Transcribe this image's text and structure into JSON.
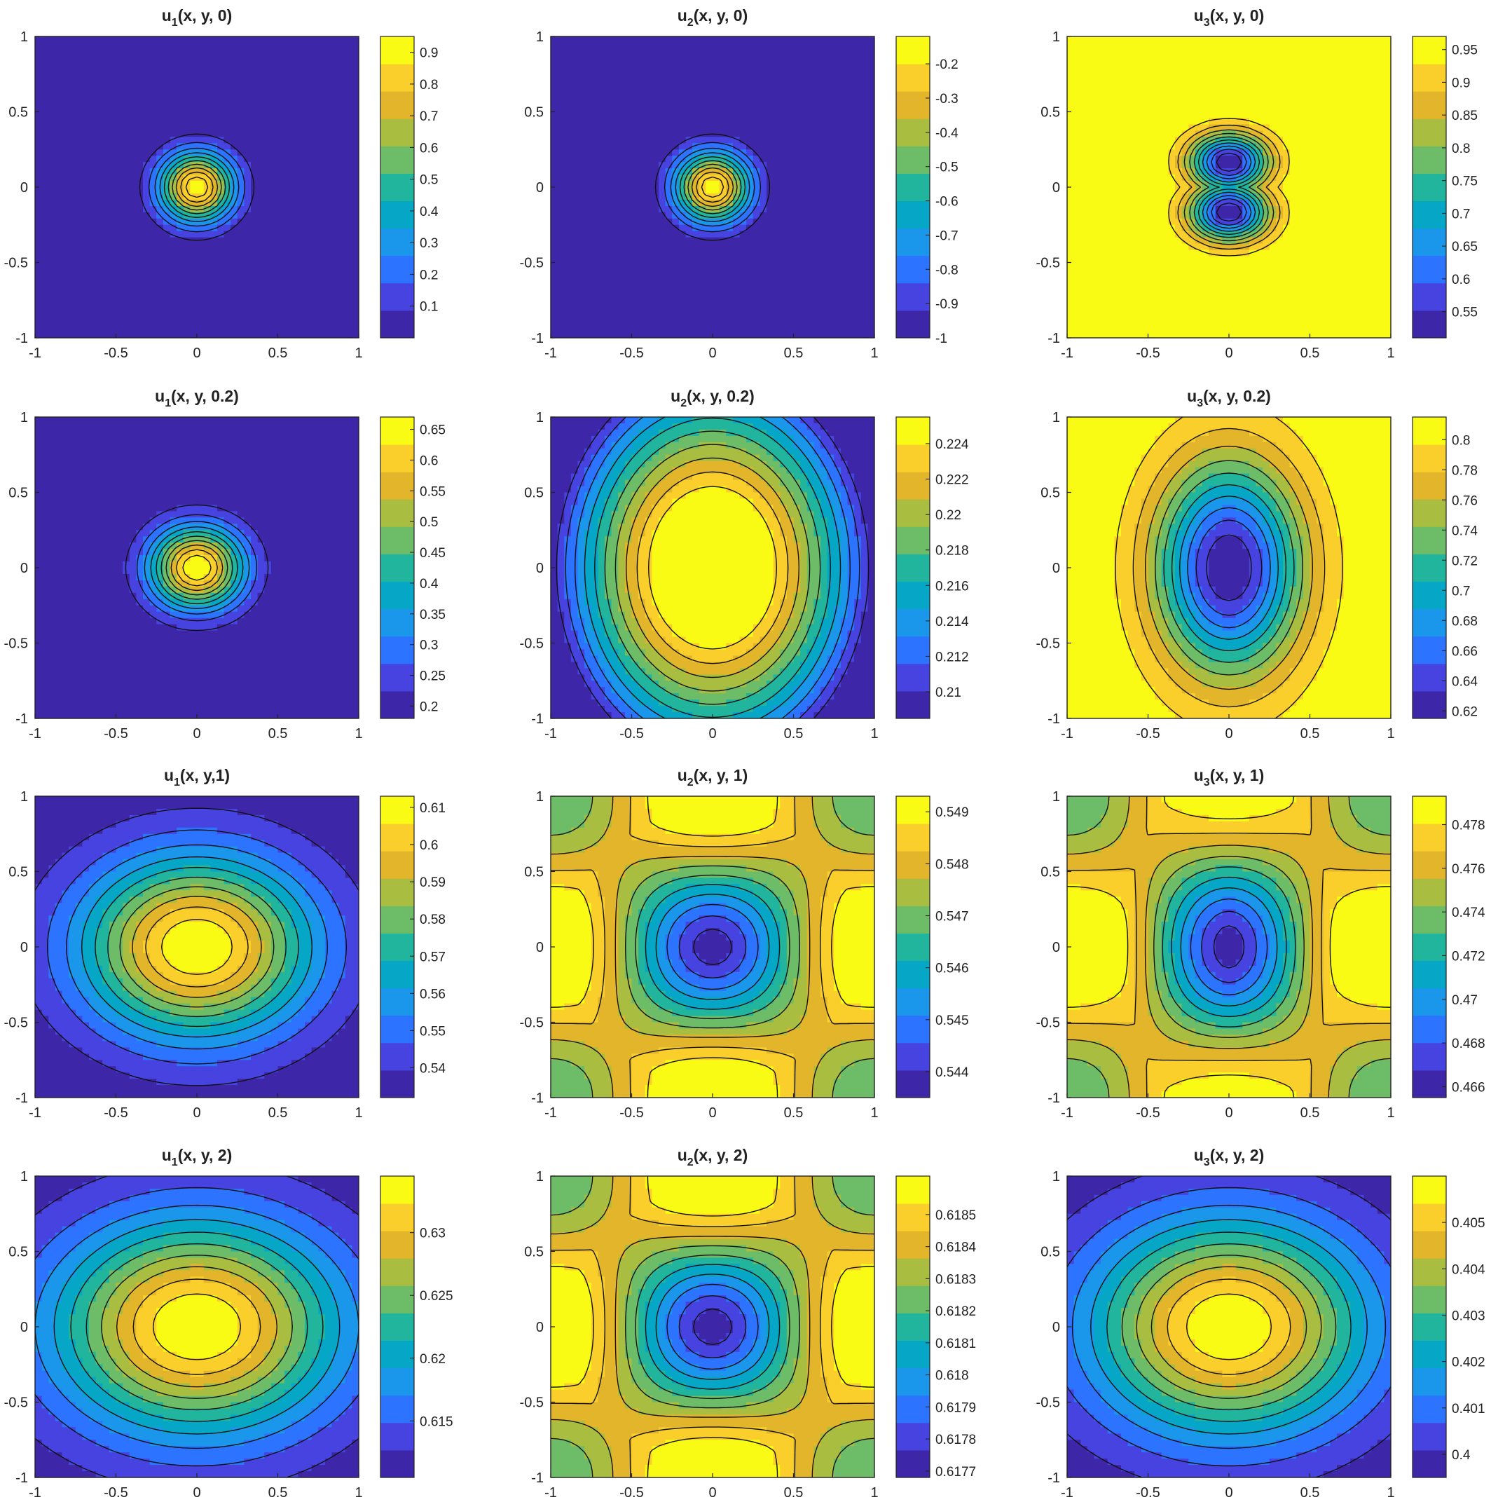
{
  "colormap": [
    "#3e26a8",
    "#4743e0",
    "#2c73ff",
    "#1a96eb",
    "#06a7c6",
    "#20b59c",
    "#6cbc68",
    "#a9be41",
    "#e2b52a",
    "#fbcf2b",
    "#f9fb14"
  ],
  "chart_data": [
    {
      "type": "contour",
      "title": "u",
      "subscript": "1",
      "suffix": "(x, y, 0)",
      "field": "gauss",
      "params": {
        "cx": 0,
        "cy": 0,
        "sx": 0.16,
        "sy": 0.16
      },
      "zlim": [
        0.0,
        0.95
      ],
      "colorbar_ticks": [
        "0.1",
        "0.2",
        "0.3",
        "0.4",
        "0.5",
        "0.6",
        "0.7",
        "0.8",
        "0.9"
      ],
      "colorbar_values": [
        0.1,
        0.2,
        0.3,
        0.4,
        0.5,
        0.6,
        0.7,
        0.8,
        0.9
      ],
      "x_ticks": [
        "-1",
        "-0.5",
        "0",
        "0.5",
        "1"
      ],
      "y_ticks": [
        "1",
        "0.5",
        "0",
        "-0.5",
        "-1"
      ],
      "xlim": [
        -1,
        1
      ],
      "ylim": [
        -1,
        1
      ]
    },
    {
      "type": "contour",
      "title": "u",
      "subscript": "2",
      "suffix": "(x, y, 0)",
      "field": "gauss",
      "params": {
        "cx": 0,
        "cy": 0,
        "sx": 0.16,
        "sy": 0.16
      },
      "zlim": [
        -1.0,
        -0.12
      ],
      "colorbar_ticks": [
        "-0.2",
        "-0.3",
        "-0.4",
        "-0.5",
        "-0.6",
        "-0.7",
        "-0.8",
        "-0.9",
        "-1"
      ],
      "colorbar_values": [
        -0.2,
        -0.3,
        -0.4,
        -0.5,
        -0.6,
        -0.7,
        -0.8,
        -0.9,
        -1.0
      ],
      "x_ticks": [
        "-1",
        "-0.5",
        "0",
        "0.5",
        "1"
      ],
      "y_ticks": [
        "1",
        "0.5",
        "0",
        "-0.5",
        "-1"
      ],
      "xlim": [
        -1,
        1
      ],
      "ylim": [
        -1,
        1
      ]
    },
    {
      "type": "contour",
      "title": "u",
      "subscript": "3",
      "suffix": "(x, y, 0)",
      "field": "peanut",
      "params": {
        "sx": 0.17,
        "sy": 0.3
      },
      "zlim": [
        0.51,
        0.97
      ],
      "colorbar_ticks": [
        "0.95",
        "0.9",
        "0.85",
        "0.8",
        "0.75",
        "0.7",
        "0.65",
        "0.6",
        "0.55"
      ],
      "colorbar_values": [
        0.95,
        0.9,
        0.85,
        0.8,
        0.75,
        0.7,
        0.65,
        0.6,
        0.55
      ],
      "x_ticks": [
        "-1",
        "-0.5",
        "0",
        "0.5",
        "1"
      ],
      "y_ticks": [
        "1",
        "0.5",
        "0",
        "-0.5",
        "-1"
      ],
      "xlim": [
        -1,
        1
      ],
      "ylim": [
        -1,
        1
      ]
    },
    {
      "type": "contour",
      "title": "u",
      "subscript": "1",
      "suffix": "(x, y, 0.2)",
      "field": "gauss",
      "params": {
        "cx": 0,
        "cy": 0,
        "sx": 0.2,
        "sy": 0.19
      },
      "zlim": [
        0.18,
        0.67
      ],
      "colorbar_ticks": [
        "0.65",
        "0.6",
        "0.55",
        "0.5",
        "0.45",
        "0.4",
        "0.35",
        "0.3",
        "0.25",
        "0.2"
      ],
      "colorbar_values": [
        0.65,
        0.6,
        0.55,
        0.5,
        0.45,
        0.4,
        0.35,
        0.3,
        0.25,
        0.2
      ],
      "x_ticks": [
        "-1",
        "-0.5",
        "0",
        "0.5",
        "1"
      ],
      "y_ticks": [
        "1",
        "0.5",
        "0",
        "-0.5",
        "-1"
      ],
      "xlim": [
        -1,
        1
      ],
      "ylim": [
        -1,
        1
      ]
    },
    {
      "type": "contour",
      "title": "u",
      "subscript": "2",
      "suffix": "(x, y, 0.2)",
      "field": "saddle",
      "params": {
        "ax": 0.55,
        "ay": 0.75
      },
      "zlim": [
        0.2085,
        0.2255
      ],
      "colorbar_ticks": [
        "0.224",
        "0.222",
        "0.22",
        "0.218",
        "0.216",
        "0.214",
        "0.212",
        "0.21"
      ],
      "colorbar_values": [
        0.224,
        0.222,
        0.22,
        0.218,
        0.216,
        0.214,
        0.212,
        0.21
      ],
      "x_ticks": [
        "-1",
        "-0.5",
        "0",
        "0.5",
        "1"
      ],
      "y_ticks": [
        "1",
        "0.5",
        "0",
        "-0.5",
        "-1"
      ],
      "xlim": [
        -1,
        1
      ],
      "ylim": [
        -1,
        1
      ]
    },
    {
      "type": "contour",
      "title": "u",
      "subscript": "3",
      "suffix": "(x, y, 0.2)",
      "field": "ellipse",
      "params": {
        "sx": 0.32,
        "sy": 0.5,
        "invert": true
      },
      "zlim": [
        0.615,
        0.815
      ],
      "colorbar_ticks": [
        "0.8",
        "0.78",
        "0.76",
        "0.74",
        "0.72",
        "0.7",
        "0.68",
        "0.66",
        "0.64",
        "0.62"
      ],
      "colorbar_values": [
        0.8,
        0.78,
        0.76,
        0.74,
        0.72,
        0.7,
        0.68,
        0.66,
        0.64,
        0.62
      ],
      "x_ticks": [
        "-1",
        "-0.5",
        "0",
        "0.5",
        "1"
      ],
      "y_ticks": [
        "1",
        "0.5",
        "0",
        "-0.5",
        "-1"
      ],
      "xlim": [
        -1,
        1
      ],
      "ylim": [
        -1,
        1
      ]
    },
    {
      "type": "contour",
      "title": "u",
      "subscript": "1",
      "suffix": "(x, y,1)",
      "field": "gauss",
      "params": {
        "cx": 0,
        "cy": 0,
        "sx": 0.5,
        "sy": 0.42
      },
      "zlim": [
        0.532,
        0.613
      ],
      "colorbar_ticks": [
        "0.61",
        "0.6",
        "0.59",
        "0.58",
        "0.57",
        "0.56",
        "0.55",
        "0.54"
      ],
      "colorbar_values": [
        0.61,
        0.6,
        0.59,
        0.58,
        0.57,
        0.56,
        0.55,
        0.54
      ],
      "x_ticks": [
        "-1",
        "-0.5",
        "0",
        "0.5",
        "1"
      ],
      "y_ticks": [
        "1",
        "0.5",
        "0",
        "-0.5",
        "-1"
      ],
      "xlim": [
        -1,
        1
      ],
      "ylim": [
        -1,
        1
      ]
    },
    {
      "type": "contour",
      "title": "u",
      "subscript": "2",
      "suffix": "(x, y, 1)",
      "field": "bowl",
      "params": {
        "ax": 0.9,
        "ay": 0.9
      },
      "zlim": [
        0.5435,
        0.5493
      ],
      "colorbar_ticks": [
        "0.549",
        "0.548",
        "0.547",
        "0.546",
        "0.545",
        "0.544"
      ],
      "colorbar_values": [
        0.549,
        0.548,
        0.547,
        0.546,
        0.545,
        0.544
      ],
      "x_ticks": [
        "-1",
        "-0.5",
        "0",
        "0.5",
        "1"
      ],
      "y_ticks": [
        "1",
        "0.5",
        "0",
        "-0.5",
        "-1"
      ],
      "xlim": [
        -1,
        1
      ],
      "ylim": [
        -1,
        1
      ]
    },
    {
      "type": "contour",
      "title": "u",
      "subscript": "3",
      "suffix": "(x, y, 1)",
      "field": "bowl",
      "params": {
        "ax": 0.65,
        "ay": 1.2
      },
      "zlim": [
        0.4655,
        0.4793
      ],
      "colorbar_ticks": [
        "0.478",
        "0.476",
        "0.474",
        "0.472",
        "0.47",
        "0.468",
        "0.466"
      ],
      "colorbar_values": [
        0.478,
        0.476,
        0.474,
        0.472,
        0.47,
        0.468,
        0.466
      ],
      "x_ticks": [
        "-1",
        "-0.5",
        "0",
        "0.5",
        "1"
      ],
      "y_ticks": [
        "1",
        "0.5",
        "0",
        "-0.5",
        "-1"
      ],
      "xlim": [
        -1,
        1
      ],
      "ylim": [
        -1,
        1
      ]
    },
    {
      "type": "contour",
      "title": "u",
      "subscript": "1",
      "suffix": "(x, y, 2)",
      "field": "gauss",
      "params": {
        "cx": 0,
        "cy": 0,
        "sx": 0.62,
        "sy": 0.5
      },
      "zlim": [
        0.6105,
        0.6345
      ],
      "colorbar_ticks": [
        "0.63",
        "0.625",
        "0.62",
        "0.615"
      ],
      "colorbar_values": [
        0.63,
        0.625,
        0.62,
        0.615
      ],
      "x_ticks": [
        "-1",
        "-0.5",
        "0",
        "0.5",
        "1"
      ],
      "y_ticks": [
        "1",
        "0.5",
        "0",
        "-0.5",
        "-1"
      ],
      "xlim": [
        -1,
        1
      ],
      "ylim": [
        -1,
        1
      ]
    },
    {
      "type": "contour",
      "title": "u",
      "subscript": "2",
      "suffix": "(x, y, 2)",
      "field": "bowl",
      "params": {
        "ax": 0.9,
        "ay": 0.9
      },
      "zlim": [
        0.61768,
        0.61862
      ],
      "colorbar_ticks": [
        "0.6185",
        "0.6184",
        "0.6183",
        "0.6182",
        "0.6181",
        "0.618",
        "0.6179",
        "0.6178",
        "0.6177"
      ],
      "colorbar_values": [
        0.6185,
        0.6184,
        0.6183,
        0.6182,
        0.6181,
        0.618,
        0.6179,
        0.6178,
        0.6177
      ],
      "x_ticks": [
        "-1",
        "-0.5",
        "0",
        "0.5",
        "1"
      ],
      "y_ticks": [
        "1",
        "0.5",
        "0",
        "-0.5",
        "-1"
      ],
      "xlim": [
        -1,
        1
      ],
      "ylim": [
        -1,
        1
      ]
    },
    {
      "type": "contour",
      "title": "u",
      "subscript": "3",
      "suffix": "(x, y, 2)",
      "field": "gauss",
      "params": {
        "cx": 0,
        "cy": 0,
        "sx": 0.6,
        "sy": 0.5
      },
      "zlim": [
        0.3995,
        0.406
      ],
      "colorbar_ticks": [
        "0.405",
        "0.404",
        "0.403",
        "0.402",
        "0.401",
        "0.4"
      ],
      "colorbar_values": [
        0.405,
        0.404,
        0.403,
        0.402,
        0.401,
        0.4
      ],
      "x_ticks": [
        "-1",
        "-0.5",
        "0",
        "0.5",
        "1"
      ],
      "y_ticks": [
        "1",
        "0.5",
        "0",
        "-0.5",
        "-1"
      ],
      "xlim": [
        -1,
        1
      ],
      "ylim": [
        -1,
        1
      ]
    }
  ]
}
